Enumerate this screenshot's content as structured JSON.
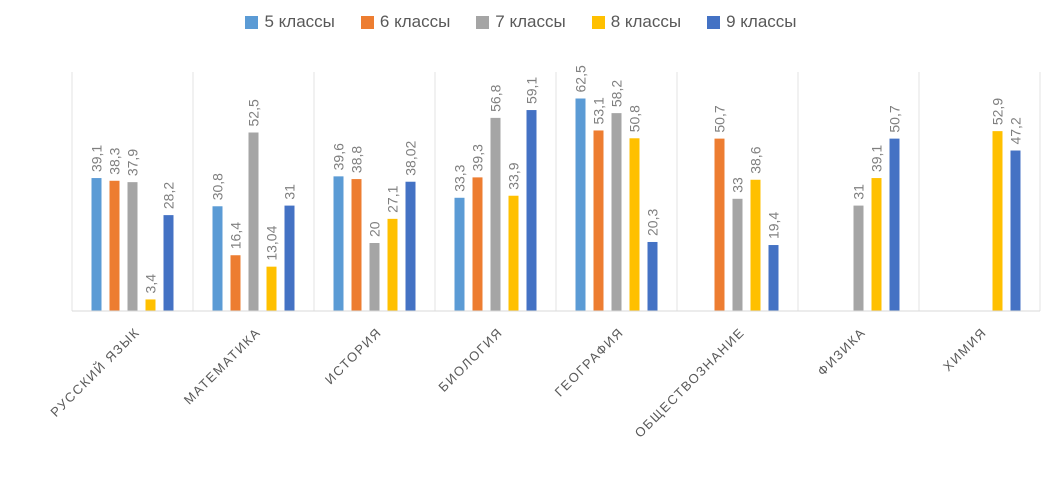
{
  "chart_data": {
    "type": "bar",
    "categories": [
      "РУССКИЙ ЯЗЫК",
      "МАТЕМАТИКА",
      "ИСТОРИЯ",
      "БИОЛОГИЯ",
      "ГЕОГРАФИЯ",
      "ОБЩЕСТВОЗНАНИЕ",
      "ФИЗИКА",
      "ХИМИЯ"
    ],
    "series": [
      {
        "name": "5 классы",
        "color": "#5B9BD5",
        "values": [
          39.1,
          30.8,
          39.6,
          33.3,
          62.5,
          null,
          null,
          null
        ],
        "labels": [
          "39,1",
          "30,8",
          "39,6",
          "33,3",
          "62,5",
          null,
          null,
          null
        ]
      },
      {
        "name": "6 классы",
        "color": "#ED7D31",
        "values": [
          38.3,
          16.4,
          38.8,
          39.3,
          53.1,
          50.7,
          null,
          null
        ],
        "labels": [
          "38,3",
          "16,4",
          "38,8",
          "39,3",
          "53,1",
          "50,7",
          null,
          null
        ]
      },
      {
        "name": "7 классы",
        "color": "#A5A5A5",
        "values": [
          37.9,
          52.5,
          20,
          56.8,
          58.2,
          33,
          31,
          null
        ],
        "labels": [
          "37,9",
          "52,5",
          "20",
          "56,8",
          "58,2",
          "33",
          "31",
          null
        ]
      },
      {
        "name": "8 классы",
        "color": "#FFC000",
        "values": [
          3.4,
          13.04,
          27.1,
          33.9,
          50.8,
          38.6,
          39.1,
          52.9
        ],
        "labels": [
          "3,4",
          "13,04",
          "27,1",
          "33,9",
          "50,8",
          "38,6",
          "39,1",
          "52,9"
        ]
      },
      {
        "name": "9 классы",
        "color": "#4472C4",
        "values": [
          28.2,
          31,
          38.02,
          59.1,
          20.3,
          19.4,
          50.7,
          47.2
        ],
        "labels": [
          "28,2",
          "31",
          "38,02",
          "59,1",
          "20,3",
          "19,4",
          "50,7",
          "47,2"
        ]
      }
    ],
    "ylim": [
      0,
      70
    ],
    "grid": false,
    "legend": "top-center",
    "title": "",
    "xlabel": "",
    "ylabel": ""
  }
}
